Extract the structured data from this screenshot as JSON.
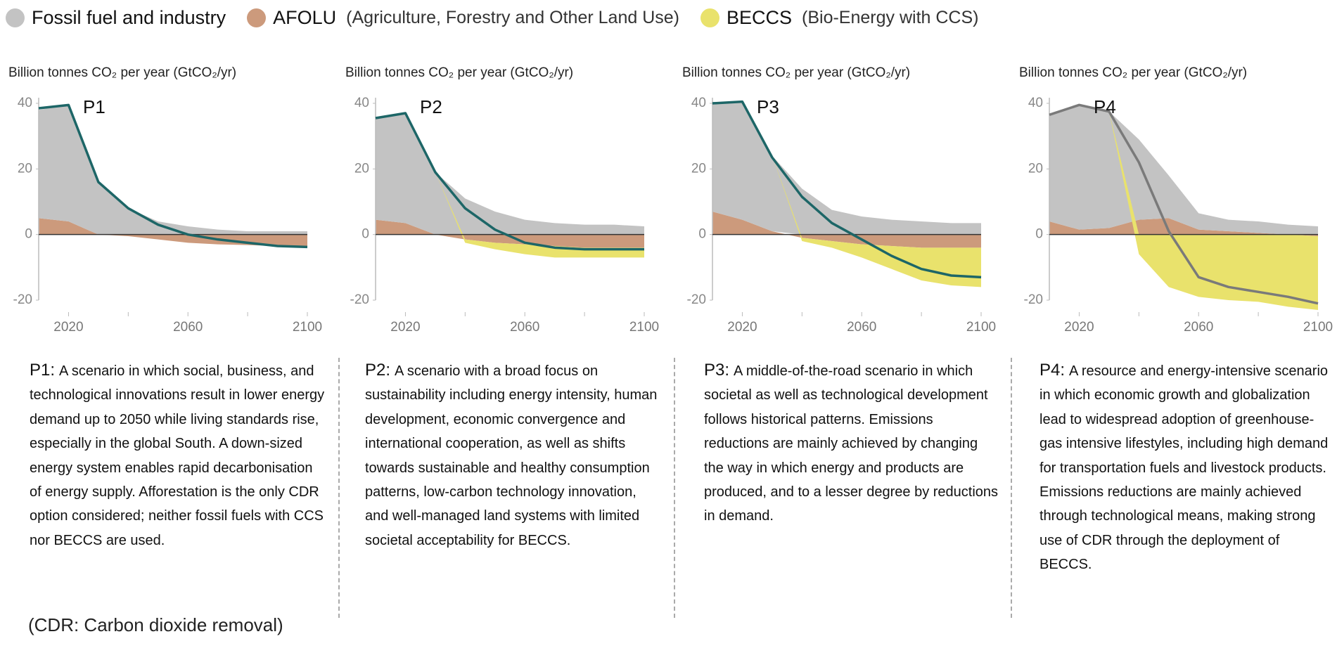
{
  "legend": [
    {
      "name": "Fossil fuel and industry",
      "note": "",
      "color": "#c3c3c3"
    },
    {
      "name": "AFOLU",
      "note": "(Agriculture, Forestry and Other Land Use)",
      "color": "#cc9a7c"
    },
    {
      "name": "BECCS",
      "note": "(Bio-Energy with CCS)",
      "color": "#e9e26c"
    }
  ],
  "footnote": "(CDR: Carbon dioxide removal)",
  "chart_data": [
    {
      "type": "area",
      "label": "P1",
      "ylabel": "Billion tonnes CO₂ per year (GtCO₂/yr)",
      "x": [
        2010,
        2020,
        2030,
        2040,
        2050,
        2060,
        2070,
        2080,
        2090,
        2100
      ],
      "xlim": [
        2010,
        2100
      ],
      "xticks": [
        2020,
        2060,
        2100
      ],
      "xminor": [
        2040,
        2080
      ],
      "ylim": [
        -20,
        40
      ],
      "yticks": [
        -20,
        0,
        20,
        40
      ],
      "series": [
        {
          "values": [
            33,
            35.5,
            16,
            8,
            4,
            2.5,
            1.5,
            1,
            1,
            1
          ]
        },
        {
          "values": [
            5,
            4,
            0,
            -0.5,
            -1.5,
            -2.5,
            -3,
            -3.2,
            -3.5,
            -3.5
          ]
        },
        {
          "values": [
            0,
            0,
            0,
            0,
            0,
            0,
            0,
            0,
            0,
            0
          ]
        }
      ],
      "line": {
        "color": "#1d6667",
        "values": [
          38.5,
          39.5,
          16,
          8,
          3,
          0,
          -1.5,
          -2.5,
          -3.5,
          -3.8
        ]
      },
      "description": {
        "label": "P1:",
        "text": "A scenario in which social, business, and technological innovations result in lower energy demand up to 2050 while living standards rise, especially in the global South. A down-sized energy system enables rapid decarbonisation of energy supply. Afforestation is the only CDR option considered; neither fossil fuels with CCS nor BECCS are used."
      }
    },
    {
      "type": "area",
      "label": "P2",
      "ylabel": "Billion tonnes CO₂ per year (GtCO₂/yr)",
      "x": [
        2010,
        2020,
        2030,
        2040,
        2050,
        2060,
        2070,
        2080,
        2090,
        2100
      ],
      "xlim": [
        2010,
        2100
      ],
      "xticks": [
        2020,
        2060,
        2100
      ],
      "xminor": [
        2040,
        2080
      ],
      "ylim": [
        -20,
        40
      ],
      "yticks": [
        -20,
        0,
        20,
        40
      ],
      "series": [
        {
          "values": [
            31,
            33.5,
            19,
            11,
            7,
            4.5,
            3.5,
            3,
            3,
            2.5
          ]
        },
        {
          "values": [
            4.5,
            3.5,
            0,
            -1.5,
            -2.5,
            -3,
            -3.5,
            -4,
            -4,
            -4
          ]
        },
        {
          "values": [
            0,
            0,
            0,
            -1,
            -2,
            -3,
            -3.5,
            -3,
            -3,
            -3
          ]
        }
      ],
      "line": {
        "color": "#1d6667",
        "values": [
          35.5,
          37,
          19,
          8,
          1.5,
          -2.5,
          -4,
          -4.5,
          -4.5,
          -4.5
        ]
      },
      "description": {
        "label": "P2:",
        "text": "A scenario with a broad focus on sustainability including energy intensity, human development, economic convergence and international cooperation, as well as shifts towards sustainable and healthy consumption patterns, low-carbon technology innovation, and well-managed land systems with limited societal acceptability for BECCS."
      }
    },
    {
      "type": "area",
      "label": "P3",
      "ylabel": "Billion tonnes CO₂ per year (GtCO₂/yr)",
      "x": [
        2010,
        2020,
        2030,
        2040,
        2050,
        2060,
        2070,
        2080,
        2090,
        2100
      ],
      "xlim": [
        2010,
        2100
      ],
      "xticks": [
        2020,
        2060,
        2100
      ],
      "xminor": [
        2040,
        2080
      ],
      "ylim": [
        -20,
        40
      ],
      "yticks": [
        -20,
        0,
        20,
        40
      ],
      "series": [
        {
          "values": [
            33,
            36,
            23,
            14,
            7.5,
            5.5,
            4.5,
            4,
            3.5,
            3.5
          ]
        },
        {
          "values": [
            7,
            4.5,
            1,
            -1,
            -2,
            -3,
            -3.5,
            -4,
            -4,
            -4
          ]
        },
        {
          "values": [
            0,
            0,
            0,
            -1,
            -2,
            -4,
            -7,
            -10,
            -11.5,
            -12
          ]
        }
      ],
      "line": {
        "color": "#1d6667",
        "values": [
          40,
          40.5,
          23.5,
          11.5,
          3.5,
          -1.5,
          -6.5,
          -10.5,
          -12.5,
          -13
        ]
      },
      "description": {
        "label": "P3:",
        "text": "A middle-of-the-road scenario in which societal as well as technological development follows historical patterns. Emissions reductions are mainly achieved by changing the way in which energy and products are produced, and to a lesser degree by reductions in demand."
      }
    },
    {
      "type": "area",
      "label": "P4",
      "ylabel": "Billion tonnes CO₂ per year (GtCO₂/yr)",
      "x": [
        2010,
        2020,
        2030,
        2040,
        2050,
        2060,
        2070,
        2080,
        2090,
        2100
      ],
      "xlim": [
        2010,
        2100
      ],
      "xticks": [
        2020,
        2060,
        2100
      ],
      "xminor": [
        2040,
        2080
      ],
      "ylim": [
        -20,
        40
      ],
      "yticks": [
        -20,
        0,
        20,
        40
      ],
      "series": [
        {
          "values": [
            32.5,
            38,
            35.5,
            24.5,
            13,
            5,
            3.5,
            3.5,
            3,
            2.5
          ]
        },
        {
          "values": [
            4,
            1.5,
            2,
            4.5,
            5,
            1.5,
            1,
            0.5,
            0,
            -0.5
          ]
        },
        {
          "values": [
            0,
            0,
            0,
            -6,
            -16,
            -19,
            -20,
            -20.5,
            -22,
            -22.5
          ]
        }
      ],
      "line": {
        "color": "#7a7a7a",
        "values": [
          36.5,
          39.5,
          37.5,
          22,
          1,
          -13,
          -16,
          -17.5,
          -19,
          -21
        ]
      },
      "description": {
        "label": "P4:",
        "text": "A resource and energy-intensive scenario in which economic growth and globalization lead to widespread adoption of greenhouse-gas intensive lifestyles, including high demand for transportation fuels and livestock products. Emissions reductions are mainly achieved through technological means, making strong use of CDR through the deployment of BECCS."
      }
    }
  ]
}
